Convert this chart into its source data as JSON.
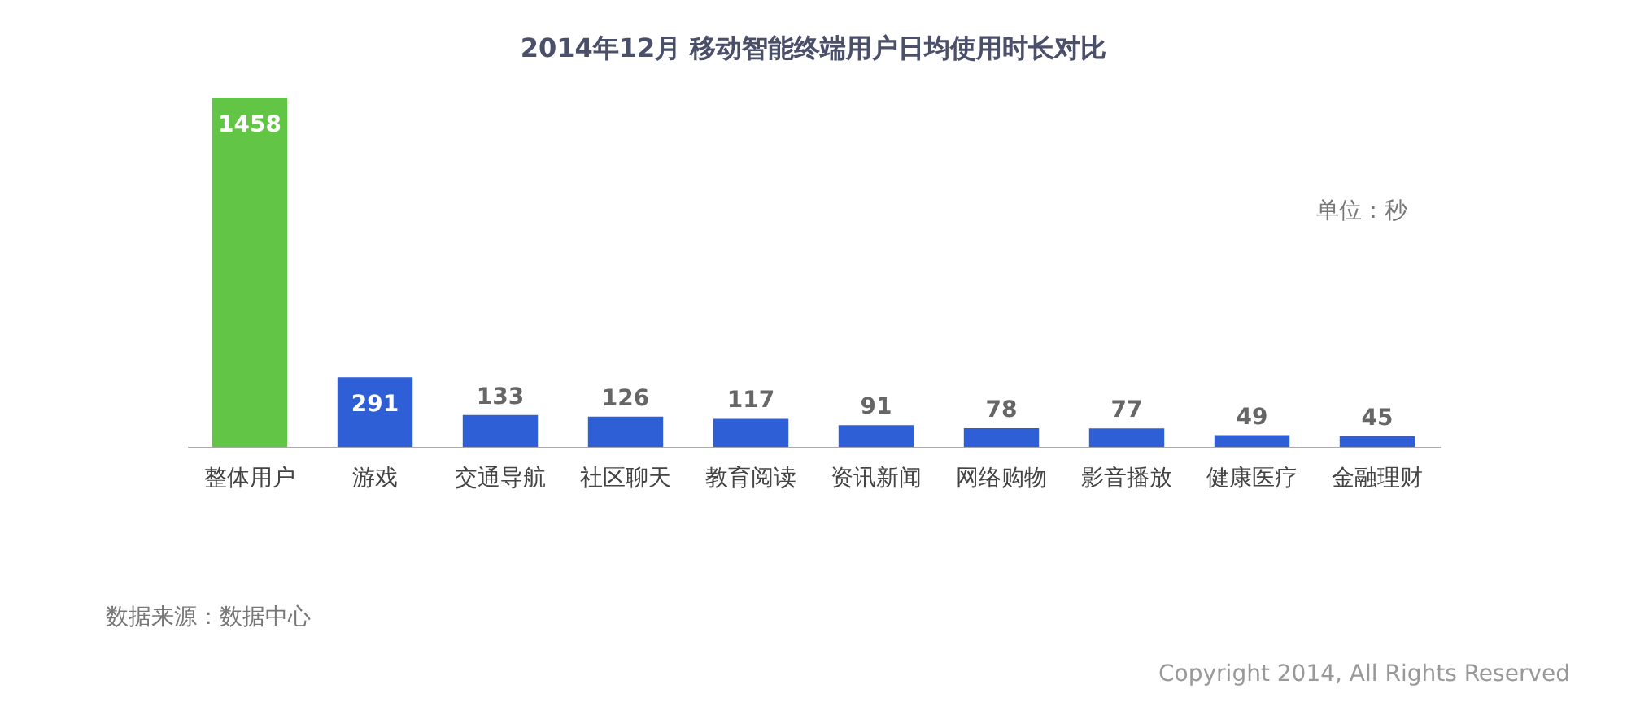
{
  "chart_data": {
    "type": "bar",
    "title": "2014年12月 移动智能终端用户日均使用时长对比",
    "categories": [
      "整体用户",
      "游戏",
      "交通导航",
      "社区聊天",
      "教育阅读",
      "资讯新闻",
      "网络购物",
      "影音播放",
      "健康医疗",
      "金融理财"
    ],
    "values": [
      1458,
      291,
      133,
      126,
      117,
      91,
      78,
      77,
      49,
      45
    ],
    "colors": [
      "#62c545",
      "#2f5fd6",
      "#2f5fd6",
      "#2f5fd6",
      "#2f5fd6",
      "#2f5fd6",
      "#2f5fd6",
      "#2f5fd6",
      "#2f5fd6",
      "#2f5fd6"
    ],
    "data_labels": true,
    "grid": false,
    "annotations": [
      "单位：秒",
      "数据来源：数据中心",
      "Copyright 2014, All Rights Reserved"
    ]
  }
}
